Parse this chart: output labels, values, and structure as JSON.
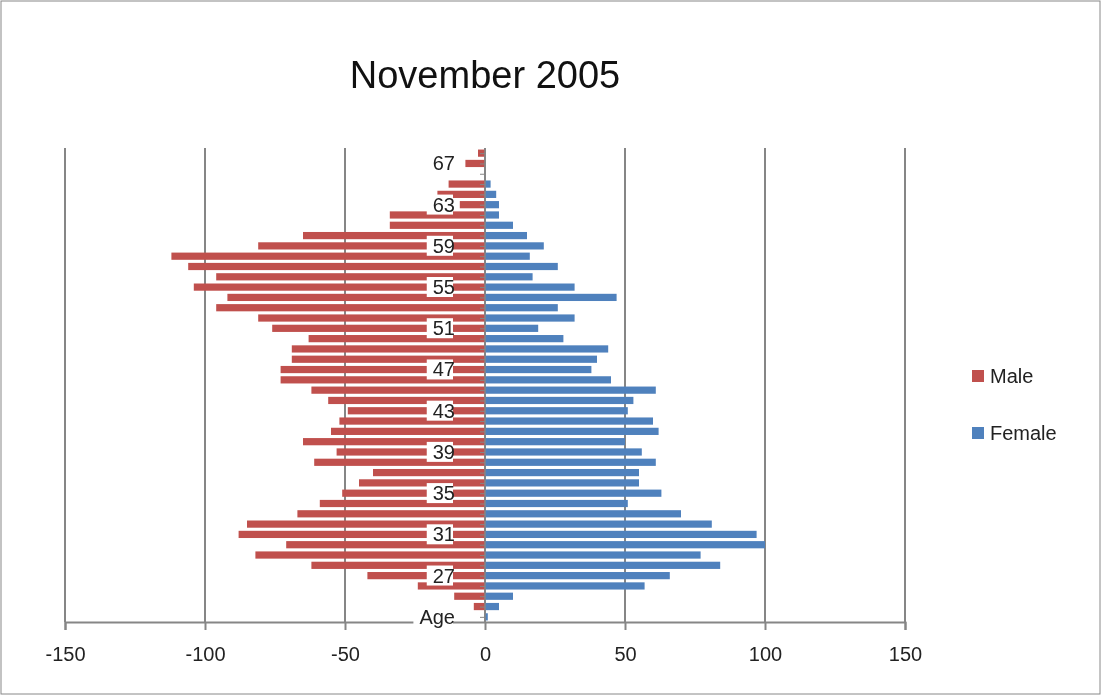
{
  "chart_data": {
    "type": "bar",
    "orientation": "horizontal",
    "title": "November 2005",
    "categories": [
      null,
      "67",
      null,
      null,
      null,
      "63",
      null,
      null,
      null,
      "59",
      null,
      null,
      null,
      "55",
      null,
      null,
      null,
      "51",
      null,
      null,
      null,
      "47",
      null,
      null,
      null,
      "43",
      null,
      null,
      null,
      "39",
      null,
      null,
      null,
      "35",
      null,
      null,
      null,
      "31",
      null,
      null,
      null,
      "27",
      null,
      null,
      null,
      "Age"
    ],
    "series": [
      {
        "name": "Male",
        "color": "#c0504d",
        "values": [
          -2.5,
          -7,
          0,
          -13,
          -17,
          -9,
          -34,
          -34,
          -65,
          -81,
          -112,
          -106,
          -96,
          -104,
          -92,
          -96,
          -81,
          -76,
          -63,
          -69,
          -69,
          -73,
          -73,
          -62,
          -56,
          -49,
          -52,
          -55,
          -65,
          -53,
          -61,
          -40,
          -45,
          -51,
          -59,
          -67,
          -85,
          -88,
          -71,
          -82,
          -62,
          -42,
          -24,
          -11,
          -4,
          0
        ]
      },
      {
        "name": "Female",
        "color": "#4f81bd",
        "values": [
          0,
          0,
          0,
          2,
          4,
          5,
          5,
          10,
          15,
          21,
          16,
          26,
          17,
          32,
          47,
          26,
          32,
          19,
          28,
          44,
          40,
          38,
          45,
          61,
          53,
          51,
          60,
          62,
          50,
          56,
          61,
          55,
          55,
          63,
          51,
          70,
          81,
          97,
          100,
          77,
          84,
          66,
          57,
          10,
          5,
          1
        ]
      }
    ],
    "xlim": [
      -150,
      150
    ],
    "xticks": [
      -150,
      -100,
      -50,
      0,
      50,
      100,
      150
    ],
    "grid": "x",
    "legend": "right",
    "stacked": true
  }
}
